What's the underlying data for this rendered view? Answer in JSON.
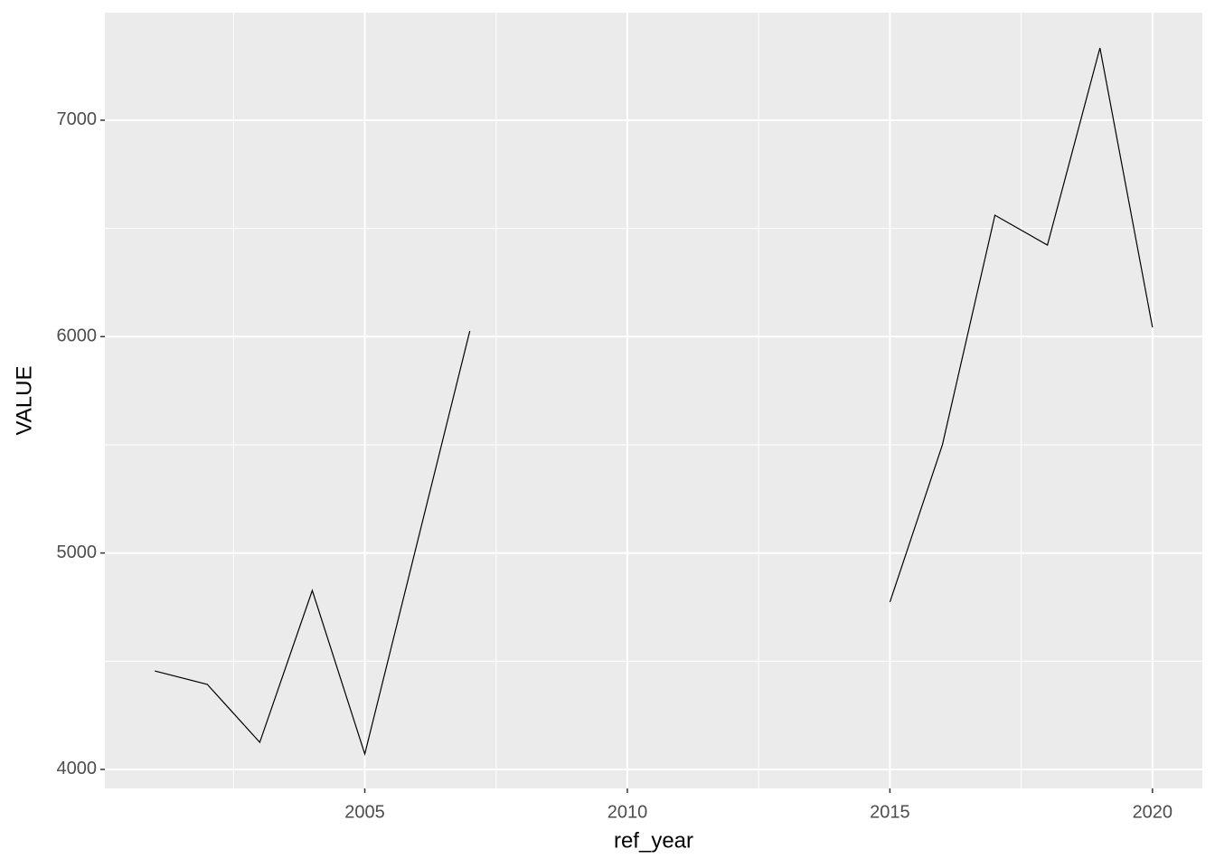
{
  "chart_data": {
    "type": "line",
    "x_label": "ref_year",
    "y_label": "VALUE",
    "x": [
      2001,
      2002,
      2003,
      2004,
      2005,
      2006,
      2007,
      2008,
      2009,
      2010,
      2011,
      2012,
      2013,
      2014,
      2015,
      2016,
      2017,
      2018,
      2019,
      2020
    ],
    "values": [
      4455,
      4393,
      4125,
      4827,
      4071,
      5049,
      6026,
      null,
      null,
      null,
      null,
      null,
      null,
      null,
      4773,
      5500,
      6561,
      6423,
      7334,
      6043
    ],
    "color": "#000000",
    "xlim": [
      2000.05,
      2020.95
    ],
    "xticks": [
      2005,
      2010,
      2015,
      2020
    ],
    "xminor": [
      2002.5,
      2007.5,
      2012.5,
      2017.5
    ],
    "ylim": [
      3912,
      7497
    ],
    "yticks": [
      4000,
      5000,
      6000,
      7000
    ],
    "yminor": [
      4500,
      5500,
      6500
    ],
    "grid": true
  }
}
